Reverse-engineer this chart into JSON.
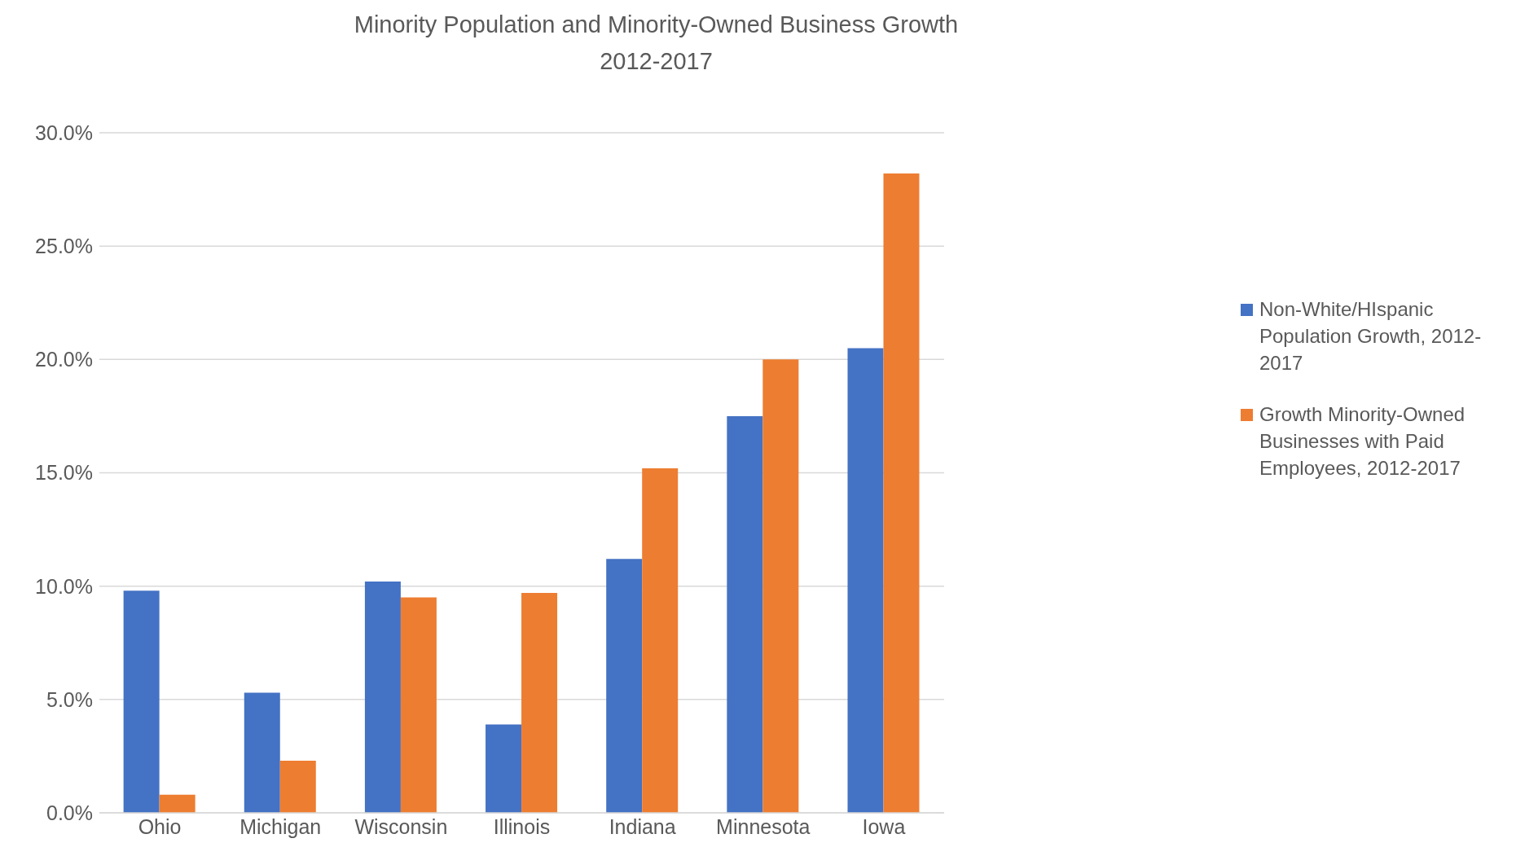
{
  "chart_data": {
    "type": "bar",
    "title": "Minority Population and Minority-Owned Business Growth\n2012-2017",
    "categories": [
      "Ohio",
      "Michigan",
      "Wisconsin",
      "Illinois",
      "Indiana",
      "Minnesota",
      "Iowa"
    ],
    "series": [
      {
        "name": "Non-White/HIspanic Population Growth, 2012-2017",
        "color": "#4472c4",
        "values": [
          9.8,
          5.3,
          10.2,
          3.9,
          11.2,
          17.5,
          20.5
        ]
      },
      {
        "name": "Growth Minority-Owned Businesses with Paid Employees, 2012-2017",
        "color": "#ed7d31",
        "values": [
          0.8,
          2.3,
          9.5,
          9.7,
          15.2,
          20.0,
          28.2
        ]
      }
    ],
    "ylim": [
      0,
      30
    ],
    "yticks": [
      {
        "value": 0,
        "label": "0.0%"
      },
      {
        "value": 5,
        "label": "5.0%"
      },
      {
        "value": 10,
        "label": "10.0%"
      },
      {
        "value": 15,
        "label": "15.0%"
      },
      {
        "value": 20,
        "label": "20.0%"
      },
      {
        "value": 25,
        "label": "25.0%"
      },
      {
        "value": 30,
        "label": "30.0%"
      }
    ],
    "grid": "y",
    "legend": "right"
  }
}
